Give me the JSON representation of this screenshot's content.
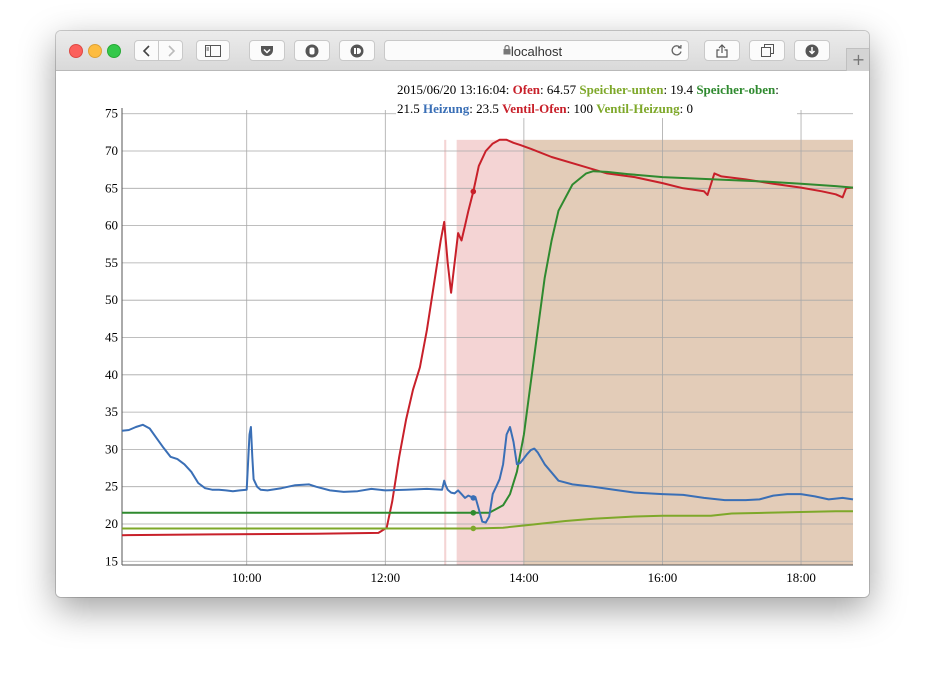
{
  "browser": {
    "url": "localhost",
    "back_icon": "chevron-left-icon",
    "forward_icon": "chevron-right-icon",
    "sidebar_icon": "sidebar-icon",
    "pocket_icon": "pocket-icon",
    "reload_icon": "reload-icon",
    "share_icon": "share-icon",
    "tabs_icon": "tabs-icon",
    "download_icon": "download-icon",
    "new_tab_label": "+"
  },
  "legend": {
    "timestamp": "2015/06/20 13:16:04",
    "items": [
      {
        "name": "Ofen",
        "value": "64.57",
        "color": "#c8202a"
      },
      {
        "name": "Speicher-unten",
        "value": "19.4",
        "color": "#7ea82a"
      },
      {
        "name": "Speicher-oben",
        "value": "21.5",
        "color": "#2f8a2f"
      },
      {
        "name": "Heizung",
        "value": "23.5",
        "color": "#3a6fb6"
      },
      {
        "name": "Ventil-Ofen",
        "value": "100",
        "color": "#c8202a"
      },
      {
        "name": "Ventil-Heizung",
        "value": "0",
        "color": "#7ea82a"
      }
    ]
  },
  "chart_data": {
    "type": "line",
    "title": "",
    "xlabel": "",
    "ylabel": "",
    "x_unit": "hours of day",
    "xlim": [
      8.2,
      18.75
    ],
    "ylim": [
      14.5,
      75.5
    ],
    "yticks": [
      15,
      20,
      25,
      30,
      35,
      40,
      45,
      50,
      55,
      60,
      65,
      70,
      75
    ],
    "xticks": [
      10,
      12,
      14,
      16,
      18
    ],
    "xtick_labels": [
      "10:00",
      "12:00",
      "14:00",
      "16:00",
      "18:00"
    ],
    "grid": true,
    "legend_position": "top-right",
    "highlight_time": 13.27,
    "shaded_regions": [
      {
        "series": "Ventil-Ofen",
        "from": 12.85,
        "to": 12.88,
        "color": "#f4d4d4"
      },
      {
        "series": "Ventil-Ofen",
        "from": 13.03,
        "to": 13.99,
        "color": "#f4d4d4"
      },
      {
        "series": "Ventil-Ofen",
        "from": 13.99,
        "to": 18.75,
        "color": "#e3ccb8"
      }
    ],
    "series": [
      {
        "name": "Ofen",
        "color": "#c8202a",
        "x": [
          8.2,
          9.5,
          11,
          11.9,
          12.02,
          12.1,
          12.2,
          12.3,
          12.4,
          12.5,
          12.6,
          12.7,
          12.8,
          12.85,
          12.9,
          12.95,
          13.0,
          13.05,
          13.1,
          13.15,
          13.2,
          13.27,
          13.35,
          13.45,
          13.55,
          13.65,
          13.75,
          13.85,
          13.95,
          14.1,
          14.4,
          14.8,
          15.2,
          15.6,
          16.0,
          16.3,
          16.6,
          16.65,
          16.75,
          16.85,
          17.2,
          17.6,
          18.0,
          18.3,
          18.5,
          18.6,
          18.65,
          18.75
        ],
        "y": [
          18.5,
          18.6,
          18.7,
          18.8,
          19.5,
          23,
          29,
          34,
          38,
          41,
          46,
          52,
          58,
          60.5,
          55,
          51,
          55,
          59,
          58,
          60,
          62,
          64.57,
          68,
          70,
          71,
          71.5,
          71.5,
          71.1,
          70.8,
          70.3,
          69.2,
          68.1,
          67.0,
          66.5,
          65.7,
          65,
          64.6,
          64.1,
          67,
          66.6,
          66.2,
          65.6,
          65.1,
          64.6,
          64.2,
          63.8,
          65,
          65.1
        ]
      },
      {
        "name": "Speicher-unten",
        "color": "#7ea82a",
        "x": [
          8.2,
          12.0,
          13.27,
          13.7,
          14.0,
          14.6,
          15.0,
          15.6,
          16.0,
          16.7,
          17.0,
          17.5,
          18.0,
          18.5,
          18.75
        ],
        "y": [
          19.4,
          19.4,
          19.4,
          19.5,
          19.8,
          20.4,
          20.7,
          21.0,
          21.1,
          21.1,
          21.4,
          21.5,
          21.6,
          21.7,
          21.7
        ]
      },
      {
        "name": "Speicher-oben",
        "color": "#2f8a2f",
        "x": [
          8.2,
          12.0,
          13.27,
          13.5,
          13.7,
          13.8,
          13.9,
          14.0,
          14.1,
          14.2,
          14.3,
          14.4,
          14.5,
          14.7,
          14.9,
          15.0,
          15.2,
          15.5,
          16.0,
          16.5,
          17.0,
          17.5,
          18.0,
          18.5,
          18.75
        ],
        "y": [
          21.5,
          21.5,
          21.5,
          21.5,
          22.5,
          24,
          27,
          32,
          39,
          46,
          53,
          58,
          62,
          65.5,
          67,
          67.3,
          67.2,
          66.9,
          66.5,
          66.3,
          66.1,
          65.9,
          65.6,
          65.3,
          65.1
        ]
      },
      {
        "name": "Heizung",
        "color": "#3a6fb6",
        "x": [
          8.2,
          8.3,
          8.4,
          8.5,
          8.6,
          8.7,
          8.8,
          8.9,
          9.0,
          9.1,
          9.2,
          9.3,
          9.4,
          9.5,
          9.6,
          9.7,
          9.8,
          9.9,
          10.0,
          10.04,
          10.06,
          10.08,
          10.1,
          10.15,
          10.2,
          10.3,
          10.5,
          10.7,
          10.9,
          11.0,
          11.2,
          11.4,
          11.6,
          11.8,
          12.0,
          12.3,
          12.6,
          12.82,
          12.85,
          12.87,
          12.9,
          12.95,
          13.0,
          13.05,
          13.1,
          13.15,
          13.2,
          13.27,
          13.3,
          13.35,
          13.4,
          13.45,
          13.5,
          13.55,
          13.6,
          13.65,
          13.7,
          13.75,
          13.8,
          13.85,
          13.9,
          13.95,
          14.0,
          14.05,
          14.1,
          14.15,
          14.2,
          14.3,
          14.5,
          14.7,
          15.0,
          15.3,
          15.6,
          16.0,
          16.3,
          16.6,
          16.9,
          17.2,
          17.4,
          17.6,
          17.8,
          18.0,
          18.2,
          18.4,
          18.6,
          18.75
        ],
        "y": [
          32.5,
          32.6,
          33.0,
          33.3,
          32.8,
          31.5,
          30.2,
          29,
          28.7,
          28,
          27,
          25.5,
          24.8,
          24.6,
          24.6,
          24.5,
          24.4,
          24.5,
          24.6,
          32,
          33,
          29,
          26,
          25,
          24.6,
          24.5,
          24.8,
          25.2,
          25.3,
          25,
          24.5,
          24.3,
          24.4,
          24.7,
          24.5,
          24.6,
          24.7,
          24.6,
          25.8,
          25.2,
          24.6,
          24.2,
          24.1,
          24.5,
          24.0,
          23.5,
          23.8,
          23.5,
          23.6,
          22,
          20.3,
          20.2,
          21,
          24,
          25,
          26,
          28,
          32,
          33,
          31,
          28,
          28.2,
          28.8,
          29.4,
          29.9,
          30.1,
          29.6,
          28,
          25.8,
          25.3,
          25,
          24.6,
          24.2,
          24,
          23.9,
          23.5,
          23.2,
          23.2,
          23.3,
          23.8,
          24.0,
          24.0,
          23.7,
          23.3,
          23.5,
          23.3
        ]
      }
    ]
  }
}
